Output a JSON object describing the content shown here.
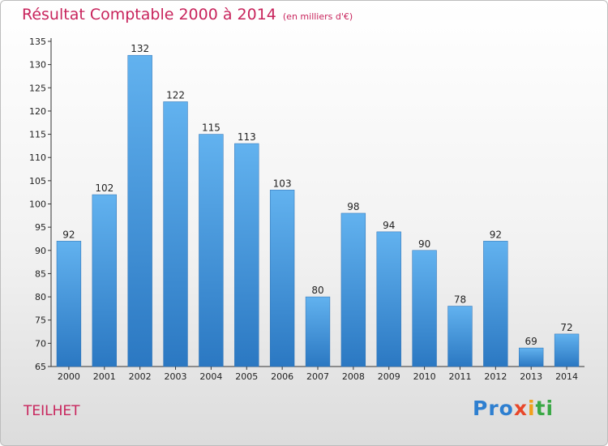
{
  "title": "Résultat Comptable 2000 à 2014",
  "subtitle": "(en milliers d'€)",
  "commune": "TEILHET",
  "logo": {
    "p1": "Pro",
    "p2": "x",
    "p3": "i",
    "p4": "ti"
  },
  "colors": {
    "bar": "#3c8fd6",
    "bar_light": "#62b2ef",
    "title": "#c8245c"
  },
  "chart_data": {
    "type": "bar",
    "title": "Résultat Comptable 2000 à 2014",
    "xlabel": "",
    "ylabel": "",
    "categories": [
      "2000",
      "2001",
      "2002",
      "2003",
      "2004",
      "2005",
      "2006",
      "2007",
      "2008",
      "2009",
      "2010",
      "2011",
      "2012",
      "2013",
      "2014"
    ],
    "values": [
      92,
      102,
      132,
      122,
      115,
      113,
      103,
      80,
      98,
      94,
      90,
      78,
      92,
      69,
      72
    ],
    "ylim": [
      65,
      135
    ],
    "yticks": [
      65,
      70,
      75,
      80,
      85,
      90,
      95,
      100,
      105,
      110,
      115,
      120,
      125,
      130,
      135
    ],
    "grid": false,
    "legend": "none"
  }
}
